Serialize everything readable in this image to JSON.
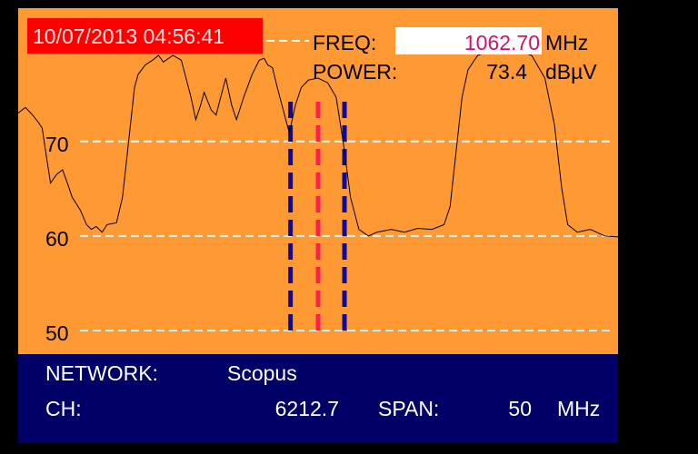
{
  "header": {
    "datetime": "10/07/2013 04:56:41",
    "freq_label": "FREQ:",
    "freq_value": "1062.70",
    "freq_unit": "MHz",
    "power_label": "POWER:",
    "power_value": "73.4",
    "power_unit": "dBµV"
  },
  "footer": {
    "network_label": "NETWORK:",
    "network_value": "Scopus",
    "ch_label": "CH:",
    "ch_value": "6212.7",
    "span_label": "SPAN:",
    "span_value": "50",
    "span_unit": "MHz"
  },
  "colors": {
    "plot_bg": "#ff9933",
    "panel_bg": "#000066",
    "datetime_bg": "#ff0000",
    "freq_value": "#d4106e",
    "marker_center": "#ff1f4f",
    "marker_edge": "#0a0aa0",
    "trace": "#000000",
    "grid": "#ffffff"
  },
  "chart_data": {
    "type": "line",
    "xlabel": "",
    "ylabel": "",
    "xlim": [
      1037.7,
      1087.7
    ],
    "ylim": [
      47.5,
      84.1
    ],
    "grid": true,
    "yticks": [
      {
        "value": 70,
        "label": "70"
      },
      {
        "value": 60,
        "label": "60"
      },
      {
        "value": 50,
        "label": "50"
      }
    ],
    "reference_level": 80,
    "markers": {
      "center": 1062.7,
      "edges": [
        1060.4,
        1064.9
      ]
    },
    "trace": [
      [
        1037.7,
        73.0
      ],
      [
        1038.3,
        73.6
      ],
      [
        1038.9,
        72.8
      ],
      [
        1039.4,
        72.0
      ],
      [
        1039.7,
        71.4
      ],
      [
        1040.1,
        68.0
      ],
      [
        1040.4,
        65.6
      ],
      [
        1040.9,
        66.5
      ],
      [
        1041.4,
        67.0
      ],
      [
        1041.8,
        65.6
      ],
      [
        1042.2,
        64.1
      ],
      [
        1042.9,
        62.7
      ],
      [
        1043.4,
        61.2
      ],
      [
        1043.8,
        60.7
      ],
      [
        1044.2,
        61.0
      ],
      [
        1044.7,
        60.4
      ],
      [
        1045.1,
        61.2
      ],
      [
        1045.9,
        61.4
      ],
      [
        1046.4,
        64.1
      ],
      [
        1046.9,
        69.9
      ],
      [
        1047.4,
        75.7
      ],
      [
        1047.7,
        77.1
      ],
      [
        1048.3,
        78.1
      ],
      [
        1048.9,
        78.6
      ],
      [
        1049.4,
        79.1
      ],
      [
        1049.8,
        78.4
      ],
      [
        1050.6,
        79.1
      ],
      [
        1051.3,
        78.6
      ],
      [
        1052.1,
        74.7
      ],
      [
        1052.5,
        72.3
      ],
      [
        1052.9,
        73.8
      ],
      [
        1053.2,
        75.2
      ],
      [
        1053.8,
        73.3
      ],
      [
        1054.2,
        72.8
      ],
      [
        1054.5,
        74.3
      ],
      [
        1055.0,
        76.7
      ],
      [
        1055.5,
        73.8
      ],
      [
        1055.9,
        72.3
      ],
      [
        1056.5,
        74.7
      ],
      [
        1057.2,
        77.1
      ],
      [
        1057.8,
        78.6
      ],
      [
        1058.2,
        78.8
      ],
      [
        1058.5,
        78.1
      ],
      [
        1058.9,
        77.8
      ],
      [
        1059.3,
        75.7
      ],
      [
        1059.8,
        73.3
      ],
      [
        1060.3,
        70.9
      ],
      [
        1060.8,
        73.8
      ],
      [
        1061.3,
        75.7
      ],
      [
        1061.9,
        76.5
      ],
      [
        1062.7,
        76.7
      ],
      [
        1063.5,
        76.2
      ],
      [
        1064.2,
        74.7
      ],
      [
        1064.8,
        69.9
      ],
      [
        1065.4,
        64.1
      ],
      [
        1066.1,
        60.7
      ],
      [
        1066.9,
        60.0
      ],
      [
        1067.6,
        60.4
      ],
      [
        1068.8,
        60.7
      ],
      [
        1069.9,
        60.4
      ],
      [
        1071.0,
        60.8
      ],
      [
        1072.2,
        60.7
      ],
      [
        1073.2,
        61.2
      ],
      [
        1073.7,
        63.1
      ],
      [
        1074.2,
        68.9
      ],
      [
        1074.7,
        74.7
      ],
      [
        1075.2,
        77.6
      ],
      [
        1076.0,
        79.1
      ],
      [
        1077.1,
        79.6
      ],
      [
        1078.2,
        79.8
      ],
      [
        1079.4,
        79.6
      ],
      [
        1080.5,
        79.1
      ],
      [
        1081.6,
        76.7
      ],
      [
        1082.4,
        71.8
      ],
      [
        1083.0,
        65.1
      ],
      [
        1083.5,
        61.2
      ],
      [
        1084.3,
        60.4
      ],
      [
        1085.4,
        60.7
      ],
      [
        1086.6,
        60.0
      ],
      [
        1087.7,
        59.9
      ]
    ]
  }
}
